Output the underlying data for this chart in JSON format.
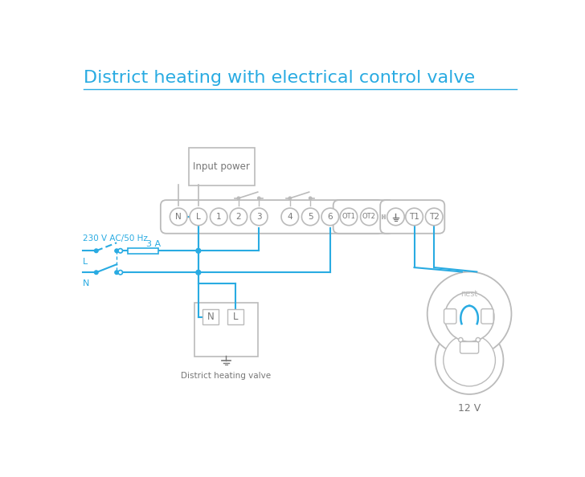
{
  "title": "District heating with electrical control valve",
  "title_color": "#29ABE2",
  "cyan": "#29ABE2",
  "gray": "#999999",
  "lgray": "#BBBBBB",
  "dgray": "#777777",
  "bg": "#FFFFFF",
  "terminals_main": [
    "N",
    "L",
    "1",
    "2",
    "3",
    "4",
    "5",
    "6"
  ],
  "terminals_ot": [
    "OT1",
    "OT2"
  ],
  "terminals_right": [
    "T1",
    "T2"
  ],
  "label_230v": "230 V AC/50 Hz",
  "label_L": "L",
  "label_N": "N",
  "label_3A": "3 A",
  "label_input_power": "Input power",
  "label_district": "District heating valve",
  "label_12v": "12 V",
  "label_nest": "nest",
  "figsize": [
    7.28,
    5.94
  ],
  "dpi": 100
}
